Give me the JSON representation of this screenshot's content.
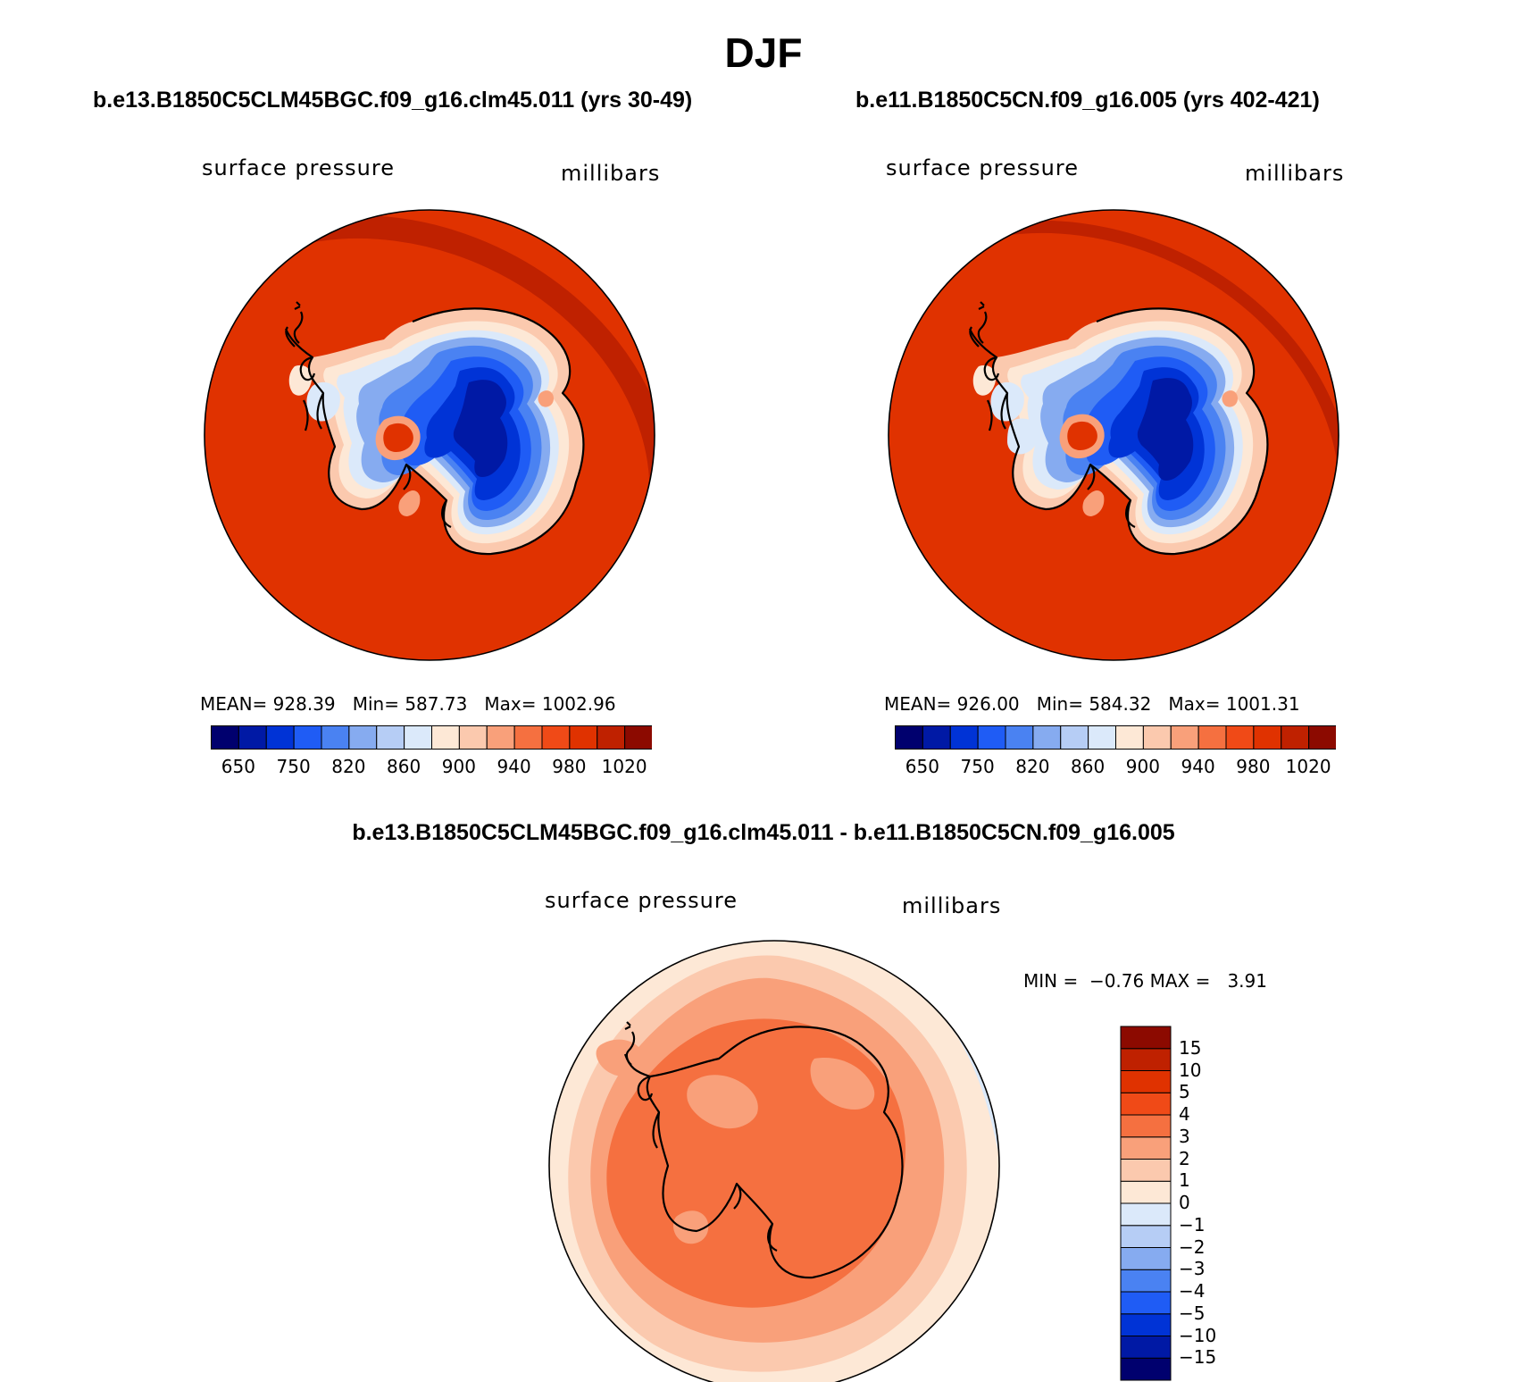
{
  "figure": {
    "title": "DJF"
  },
  "panels": {
    "left": {
      "title": "b.e13.B1850C5CLM45BGC.f09_g16.clm45.011 (yrs 30-49)",
      "variable": "surface pressure",
      "units": "millibars",
      "stats": {
        "mean_label": "MEAN=",
        "mean": "928.39",
        "min_label": "Min=",
        "min": "587.73",
        "max_label": "Max=",
        "max": "1002.96"
      }
    },
    "right": {
      "title": "b.e11.B1850C5CN.f09_g16.005 (yrs 402-421)",
      "variable": "surface pressure",
      "units": "millibars",
      "stats": {
        "mean_label": "MEAN=",
        "mean": "926.00",
        "min_label": "Min=",
        "min": "584.32",
        "max_label": "Max=",
        "max": "1001.31"
      }
    },
    "diff": {
      "title": "b.e13.B1850C5CLM45BGC.f09_g16.clm45.011 - b.e11.B1850C5CN.f09_g16.005",
      "variable": "surface pressure",
      "units": "millibars",
      "stats": {
        "min_label": "MIN =",
        "min": "−0.76",
        "max_label": "MAX =",
        "max": "3.91"
      }
    }
  },
  "colorbars": {
    "abs": {
      "colors": [
        "#00006e",
        "#0019a5",
        "#0033d6",
        "#1f5cf5",
        "#4a82f2",
        "#86abf0",
        "#b6cdf5",
        "#dbe9fa",
        "#fde8d6",
        "#fbc9ae",
        "#f9a07a",
        "#f57040",
        "#f04a17",
        "#e03200",
        "#bf2100",
        "#8c0a00"
      ],
      "tick_labels": [
        "650",
        "750",
        "820",
        "860",
        "900",
        "940",
        "980",
        "1020"
      ]
    },
    "diff": {
      "colors": [
        "#00006e",
        "#0019a5",
        "#0033d6",
        "#1f5cf5",
        "#4a82f2",
        "#86abf0",
        "#b6cdf5",
        "#dbe9fa",
        "#fde8d6",
        "#fbc9ae",
        "#f9a07a",
        "#f57040",
        "#f04a17",
        "#e03200",
        "#bf2100",
        "#8c0a00"
      ],
      "tick_labels": [
        "15",
        "10",
        "5",
        "4",
        "3",
        "2",
        "1",
        "0",
        "−1",
        "−2",
        "−3",
        "−4",
        "−5",
        "−10",
        "−15"
      ]
    }
  },
  "map_colors": {
    "ocean_abs": "#e03200",
    "ocean_abs_edge": "#bf2100",
    "diff_base": "#fde8d6",
    "diff_ring": "#fbc9ae",
    "diff_mid": "#f9a07a",
    "diff_core": "#f57040",
    "diff_neg": "#dbe9fa",
    "coast": "#000000"
  }
}
